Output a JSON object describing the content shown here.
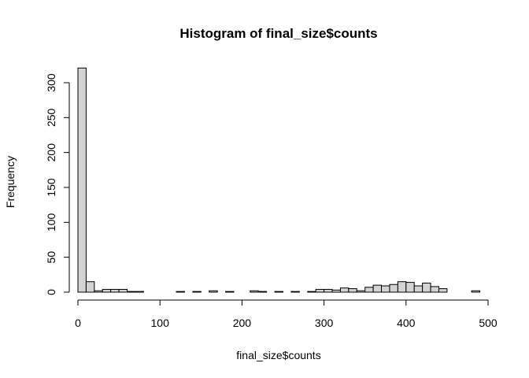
{
  "chart_data": {
    "type": "bar",
    "title": "Histogram of final_size$counts",
    "xlabel": "final_size$counts",
    "ylabel": "Frequency",
    "bin_width": 10,
    "xlim": [
      0,
      500
    ],
    "ylim": [
      0,
      320
    ],
    "x_ticks": [
      0,
      100,
      200,
      300,
      400,
      500
    ],
    "y_ticks": [
      0,
      50,
      100,
      150,
      200,
      250,
      300
    ],
    "bins": [
      {
        "start": 0,
        "end": 10,
        "count": 321
      },
      {
        "start": 10,
        "end": 20,
        "count": 15
      },
      {
        "start": 20,
        "end": 30,
        "count": 2
      },
      {
        "start": 30,
        "end": 40,
        "count": 4
      },
      {
        "start": 40,
        "end": 50,
        "count": 4
      },
      {
        "start": 50,
        "end": 60,
        "count": 4
      },
      {
        "start": 60,
        "end": 70,
        "count": 1
      },
      {
        "start": 70,
        "end": 80,
        "count": 1
      },
      {
        "start": 120,
        "end": 130,
        "count": 1
      },
      {
        "start": 140,
        "end": 150,
        "count": 1
      },
      {
        "start": 160,
        "end": 170,
        "count": 2
      },
      {
        "start": 180,
        "end": 190,
        "count": 1
      },
      {
        "start": 210,
        "end": 220,
        "count": 2
      },
      {
        "start": 220,
        "end": 230,
        "count": 1
      },
      {
        "start": 240,
        "end": 250,
        "count": 1
      },
      {
        "start": 260,
        "end": 270,
        "count": 1
      },
      {
        "start": 280,
        "end": 290,
        "count": 1
      },
      {
        "start": 290,
        "end": 300,
        "count": 4
      },
      {
        "start": 300,
        "end": 310,
        "count": 4
      },
      {
        "start": 310,
        "end": 320,
        "count": 3
      },
      {
        "start": 320,
        "end": 330,
        "count": 6
      },
      {
        "start": 330,
        "end": 340,
        "count": 5
      },
      {
        "start": 340,
        "end": 350,
        "count": 2
      },
      {
        "start": 350,
        "end": 360,
        "count": 7
      },
      {
        "start": 360,
        "end": 370,
        "count": 10
      },
      {
        "start": 370,
        "end": 380,
        "count": 9
      },
      {
        "start": 380,
        "end": 390,
        "count": 11
      },
      {
        "start": 390,
        "end": 400,
        "count": 15
      },
      {
        "start": 400,
        "end": 410,
        "count": 14
      },
      {
        "start": 410,
        "end": 420,
        "count": 9
      },
      {
        "start": 420,
        "end": 430,
        "count": 13
      },
      {
        "start": 430,
        "end": 440,
        "count": 8
      },
      {
        "start": 440,
        "end": 450,
        "count": 5
      },
      {
        "start": 480,
        "end": 490,
        "count": 2
      }
    ],
    "bar_fill": "#d3d3d3",
    "bar_stroke": "#000000"
  }
}
